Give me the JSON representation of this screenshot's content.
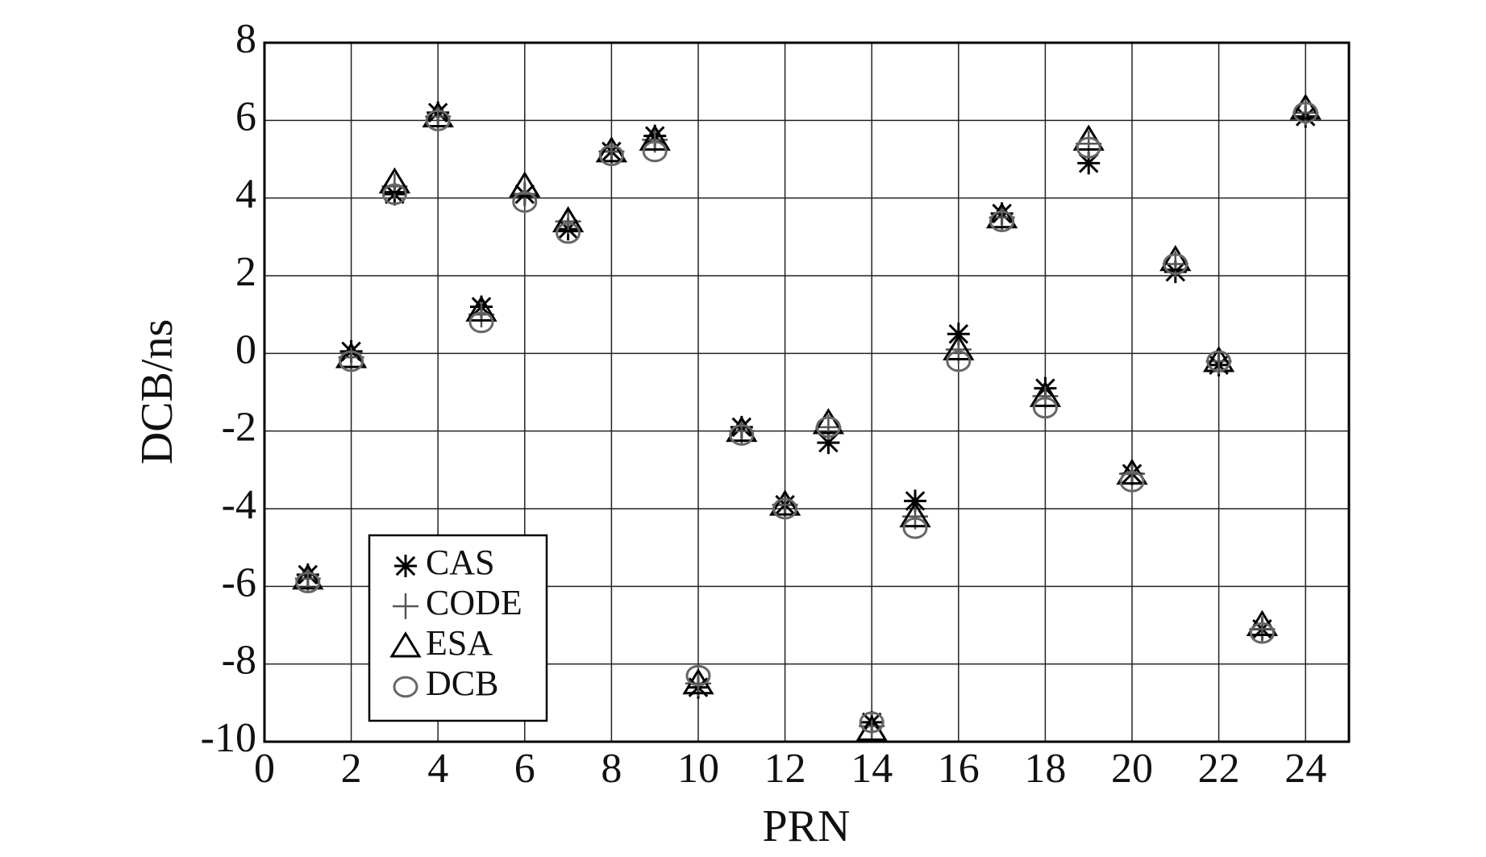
{
  "chart_data": {
    "type": "scatter",
    "xlabel": "PRN",
    "ylabel": "DCB/ns",
    "x": [
      1,
      2,
      3,
      4,
      5,
      6,
      7,
      8,
      9,
      10,
      11,
      12,
      13,
      14,
      15,
      16,
      17,
      18,
      19,
      20,
      21,
      22,
      23,
      24
    ],
    "series": [
      {
        "name": "CAS",
        "marker": "asterisk",
        "color": "#000000",
        "values": [
          -5.7,
          0.05,
          4.1,
          6.2,
          1.2,
          4.1,
          3.2,
          5.2,
          5.6,
          -8.6,
          -1.9,
          -3.9,
          -2.3,
          -9.5,
          -3.8,
          0.5,
          3.6,
          -0.9,
          4.9,
          -3.1,
          2.1,
          -0.3,
          -7.1,
          6.1
        ]
      },
      {
        "name": "CODE",
        "marker": "plus",
        "color": "#555555",
        "values": [
          -5.8,
          -0.1,
          4.3,
          6.1,
          1.0,
          4.1,
          3.4,
          5.2,
          5.5,
          -8.5,
          -2.0,
          -3.9,
          -1.9,
          -9.6,
          -4.2,
          0.1,
          3.5,
          -1.1,
          5.4,
          -3.1,
          2.3,
          -0.2,
          -7.1,
          6.2
        ]
      },
      {
        "name": "ESA",
        "marker": "triangle",
        "color": "#000000",
        "values": [
          -5.8,
          -0.1,
          4.4,
          6.1,
          1.1,
          4.3,
          3.4,
          5.2,
          5.5,
          -8.5,
          -2.0,
          -3.9,
          -1.8,
          -9.7,
          -4.2,
          0.1,
          3.5,
          -1.1,
          5.5,
          -3.1,
          2.4,
          -0.2,
          -7.0,
          6.3
        ]
      },
      {
        "name": "DCB",
        "marker": "circle",
        "color": "#666666",
        "values": [
          -5.9,
          -0.2,
          4.1,
          6.0,
          0.8,
          3.9,
          3.1,
          5.1,
          5.2,
          -8.3,
          -2.1,
          -4.0,
          -1.9,
          -9.5,
          -4.5,
          -0.2,
          3.4,
          -1.4,
          5.3,
          -3.3,
          2.3,
          -0.2,
          -7.2,
          6.2
        ]
      }
    ],
    "xlim": [
      0,
      25
    ],
    "xticks": [
      0,
      2,
      4,
      6,
      8,
      10,
      12,
      14,
      16,
      18,
      20,
      22,
      24
    ],
    "ylim": [
      -10,
      8
    ],
    "yticks": [
      -10,
      -8,
      -6,
      -4,
      -2,
      0,
      2,
      4,
      6,
      8
    ],
    "grid": true,
    "legend": "lower left"
  }
}
